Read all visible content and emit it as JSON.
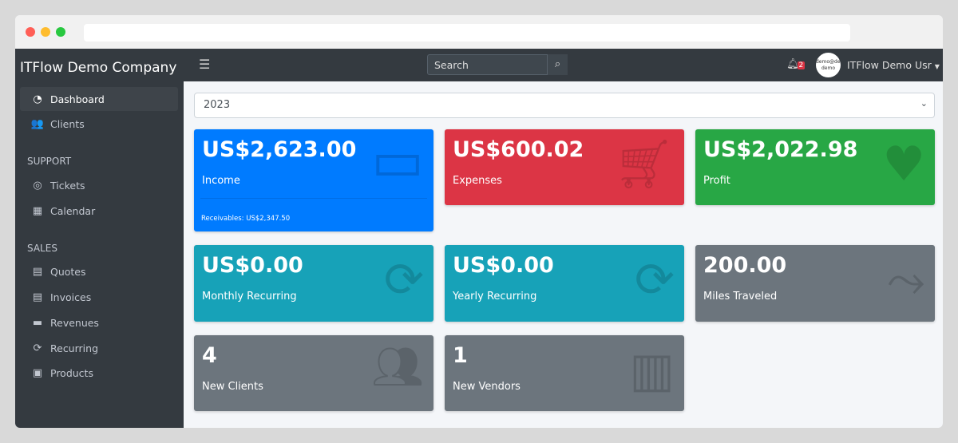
{
  "sidebar": {
    "brand": "ITFlow Demo Company",
    "items": [
      {
        "label": "Dashboard",
        "icon": "tachometer-icon"
      },
      {
        "label": "Clients",
        "icon": "users-icon"
      }
    ],
    "support_header": "SUPPORT",
    "support": [
      {
        "label": "Tickets",
        "icon": "life-ring-icon"
      },
      {
        "label": "Calendar",
        "icon": "calendar-icon"
      }
    ],
    "sales_header": "SALES",
    "sales": [
      {
        "label": "Quotes",
        "icon": "file-icon"
      },
      {
        "label": "Invoices",
        "icon": "invoice-icon"
      },
      {
        "label": "Revenues",
        "icon": "credit-card-icon"
      },
      {
        "label": "Recurring",
        "icon": "sync-icon"
      },
      {
        "label": "Products",
        "icon": "box-icon"
      }
    ]
  },
  "topbar": {
    "search_placeholder": "Search",
    "notifications": "2",
    "avatar_text": "demo@demo demo",
    "user": "ITFlow Demo Usr"
  },
  "year": "2023",
  "cards": [
    {
      "value": "US$2,623.00",
      "label": "Income",
      "footer": "Receivables: US$2,347.50",
      "color": "#007bff"
    },
    {
      "value": "US$600.02",
      "label": "Expenses",
      "color": "#dc3545"
    },
    {
      "value": "US$2,022.98",
      "label": "Profit",
      "color": "#28a745"
    },
    {
      "value": "US$0.00",
      "label": "Monthly Recurring",
      "color": "#17a2b8"
    },
    {
      "value": "US$0.00",
      "label": "Yearly Recurring",
      "color": "#17a2b8"
    },
    {
      "value": "200.00",
      "label": "Miles Traveled",
      "color": "#6c757d"
    },
    {
      "value": "4",
      "label": "New Clients",
      "color": "#6c757d"
    },
    {
      "value": "1",
      "label": "New Vendors",
      "color": "#6c757d"
    }
  ]
}
